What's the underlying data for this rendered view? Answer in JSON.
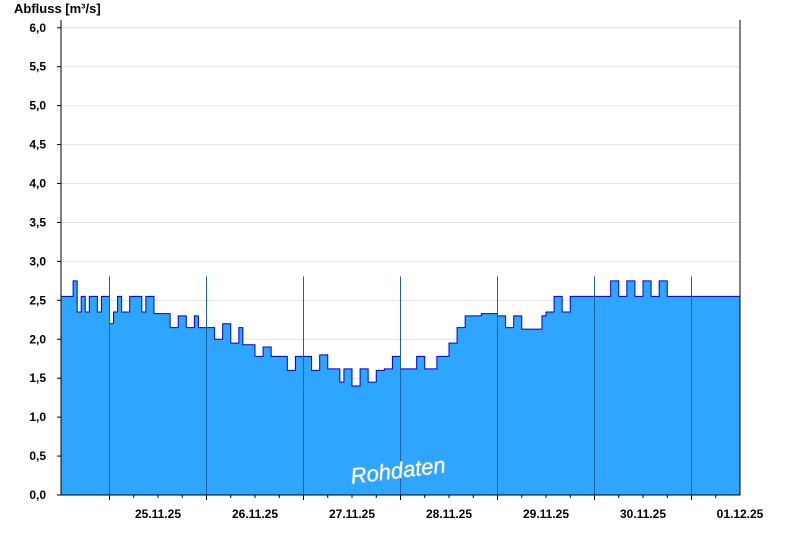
{
  "chart_data": {
    "type": "area",
    "ylabel": "Abfluss [m³/s]",
    "ylim": [
      0,
      6.1
    ],
    "yticks": [
      0,
      0.5,
      1,
      1.5,
      2,
      2.5,
      3,
      3.5,
      4,
      4.5,
      5,
      5.5,
      6
    ],
    "ytick_labels": [
      "0,0",
      "0,5",
      "1,0",
      "1,5",
      "2,0",
      "2,5",
      "3,0",
      "3,5",
      "4,0",
      "4,5",
      "5,0",
      "5,5",
      "6,0"
    ],
    "xlim": [
      "2025-11-24T12:00",
      "2025-12-01T12:00"
    ],
    "xtick_labels": [
      "25.11.25",
      "26.11.25",
      "27.11.25",
      "28.11.25",
      "29.11.25",
      "30.11.25",
      "01.12.25"
    ],
    "grid": true,
    "annotation": "Rohdaten",
    "fill_color": "#2ea6ff",
    "line_color": "#0000cc",
    "series": [
      {
        "x": [
          "2025-11-24T12:00",
          "2025-11-24T14:00",
          "2025-11-24T15:00",
          "2025-11-24T16:00",
          "2025-11-24T17:00",
          "2025-11-24T18:00",
          "2025-11-24T19:00",
          "2025-11-24T20:00",
          "2025-11-24T21:00",
          "2025-11-24T22:00",
          "2025-11-25T00:00",
          "2025-11-25T01:00",
          "2025-11-25T02:00",
          "2025-11-25T03:00",
          "2025-11-25T05:00",
          "2025-11-25T07:00",
          "2025-11-25T08:00",
          "2025-11-25T09:00",
          "2025-11-25T11:00",
          "2025-11-25T13:00",
          "2025-11-25T15:00",
          "2025-11-25T17:00",
          "2025-11-25T19:00",
          "2025-11-25T21:00",
          "2025-11-25T22:00",
          "2025-11-26T00:00",
          "2025-11-26T02:00",
          "2025-11-26T04:00",
          "2025-11-26T06:00",
          "2025-11-26T08:00",
          "2025-11-26T09:00",
          "2025-11-26T10:00",
          "2025-11-26T12:00",
          "2025-11-26T14:00",
          "2025-11-26T16:00",
          "2025-11-26T18:00",
          "2025-11-26T20:00",
          "2025-11-26T22:00",
          "2025-11-27T00:00",
          "2025-11-27T02:00",
          "2025-11-27T04:00",
          "2025-11-27T06:00",
          "2025-11-27T08:00",
          "2025-11-27T09:00",
          "2025-11-27T10:00",
          "2025-11-27T12:00",
          "2025-11-27T14:00",
          "2025-11-27T16:00",
          "2025-11-27T18:00",
          "2025-11-27T20:00",
          "2025-11-27T22:00",
          "2025-11-28T00:00",
          "2025-11-28T02:00",
          "2025-11-28T04:00",
          "2025-11-28T06:00",
          "2025-11-28T08:00",
          "2025-11-28T09:00",
          "2025-11-28T10:00",
          "2025-11-28T12:00",
          "2025-11-28T14:00",
          "2025-11-28T16:00",
          "2025-11-28T18:00",
          "2025-11-28T20:00",
          "2025-11-28T22:00",
          "2025-11-29T00:00",
          "2025-11-29T02:00",
          "2025-11-29T04:00",
          "2025-11-29T06:00",
          "2025-11-29T08:00",
          "2025-11-29T10:00",
          "2025-11-29T11:00",
          "2025-11-29T12:00",
          "2025-11-29T14:00",
          "2025-11-29T16:00",
          "2025-11-29T18:00",
          "2025-11-29T20:00",
          "2025-11-29T22:00",
          "2025-11-30T00:00",
          "2025-11-30T02:00",
          "2025-11-30T04:00",
          "2025-11-30T06:00",
          "2025-11-30T08:00",
          "2025-11-30T10:00",
          "2025-11-30T12:00",
          "2025-11-30T14:00",
          "2025-11-30T16:00",
          "2025-11-30T18:00",
          "2025-11-30T20:00",
          "2025-11-30T22:00",
          "2025-12-01T00:00",
          "2025-12-01T02:00",
          "2025-12-01T04:00",
          "2025-12-01T06:00",
          "2025-12-01T08:00",
          "2025-12-01T10:00",
          "2025-12-01T12:00"
        ],
        "y": [
          2.55,
          2.55,
          2.75,
          2.35,
          2.55,
          2.35,
          2.55,
          2.55,
          2.35,
          2.55,
          2.2,
          2.35,
          2.55,
          2.35,
          2.55,
          2.55,
          2.35,
          2.55,
          2.33,
          2.33,
          2.15,
          2.3,
          2.15,
          2.3,
          2.15,
          2.15,
          2.0,
          2.2,
          1.95,
          2.15,
          1.93,
          1.93,
          1.78,
          1.9,
          1.78,
          1.78,
          1.6,
          1.78,
          1.78,
          1.6,
          1.8,
          1.62,
          1.62,
          1.45,
          1.62,
          1.4,
          1.62,
          1.45,
          1.6,
          1.62,
          1.78,
          1.62,
          1.62,
          1.78,
          1.62,
          1.62,
          1.78,
          1.78,
          1.95,
          2.15,
          2.3,
          2.3,
          2.33,
          2.33,
          2.3,
          2.15,
          2.3,
          2.13,
          2.13,
          2.13,
          2.3,
          2.35,
          2.55,
          2.35,
          2.55,
          2.55,
          2.55,
          2.55,
          2.55,
          2.75,
          2.55,
          2.75,
          2.55,
          2.75,
          2.55,
          2.75,
          2.55,
          2.55,
          2.55,
          2.55,
          2.55,
          2.55,
          2.55,
          2.55,
          2.55,
          2.55
        ]
      }
    ]
  }
}
